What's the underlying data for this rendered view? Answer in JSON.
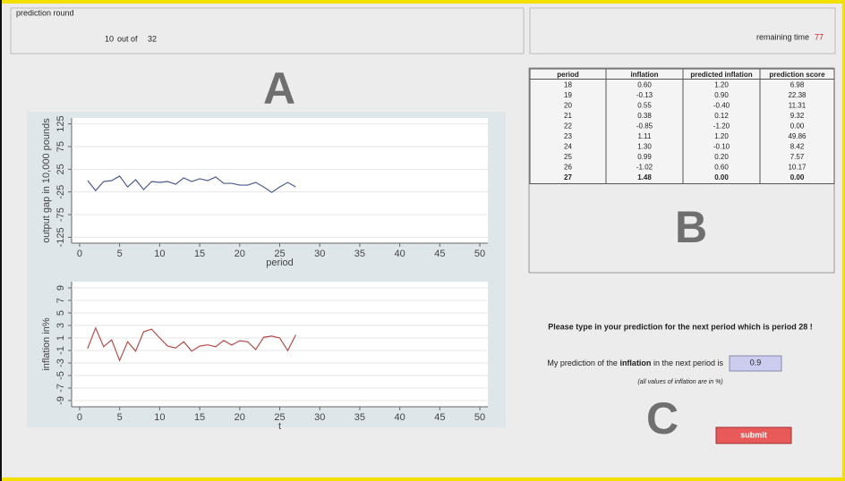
{
  "header": {
    "round_label": "prediction round",
    "round_current": "10",
    "round_of": "out of",
    "round_total": "32",
    "time_label": "remaining time",
    "time_value": "77"
  },
  "section_labels": {
    "a": "A",
    "b": "B",
    "c": "C"
  },
  "chart_data": [
    {
      "type": "line",
      "ylabel": "output gap in 10,000 pounds",
      "xlabel": "period",
      "color": "#4a5a8c",
      "x": [
        1,
        2,
        3,
        4,
        5,
        6,
        7,
        8,
        9,
        10,
        11,
        12,
        13,
        14,
        15,
        16,
        17,
        18,
        19,
        20,
        21,
        22,
        23,
        24,
        25,
        26,
        27
      ],
      "values": [
        0,
        -22,
        -2,
        0,
        10,
        -14,
        2,
        -20,
        -2,
        -4,
        -2,
        -8,
        6,
        -2,
        4,
        0,
        8,
        -6,
        -6,
        -10,
        -10,
        -4,
        -14,
        -26,
        -14,
        -4,
        -14
      ],
      "xlim": [
        -1,
        51
      ],
      "xticks": [
        0,
        5,
        10,
        15,
        20,
        25,
        30,
        35,
        40,
        45,
        50
      ],
      "ylim": [
        -138,
        138
      ],
      "yticks": [
        -125,
        -75,
        -25,
        25,
        75,
        125
      ]
    },
    {
      "type": "line",
      "ylabel": "inflation in%",
      "xlabel": "t",
      "color": "#b84a4a",
      "x": [
        1,
        2,
        3,
        4,
        5,
        6,
        7,
        8,
        9,
        10,
        11,
        12,
        13,
        14,
        15,
        16,
        17,
        18,
        19,
        20,
        21,
        22,
        23,
        24,
        25,
        26,
        27
      ],
      "values": [
        -0.7,
        2.6,
        -0.4,
        0.7,
        -2.6,
        0.4,
        -1.1,
        2,
        2.4,
        1,
        -0.3,
        -0.6,
        0.4,
        -1.1,
        -0.3,
        -0.1,
        -0.4,
        0.6,
        -0.13,
        0.55,
        0.38,
        -0.85,
        1.11,
        1.3,
        0.99,
        -1.02,
        1.48
      ],
      "xlim": [
        -1,
        51
      ],
      "xticks": [
        0,
        5,
        10,
        15,
        20,
        25,
        30,
        35,
        40,
        45,
        50
      ],
      "ylim": [
        -10,
        10
      ],
      "yticks": [
        -9,
        -7,
        -5,
        -3,
        -1,
        1,
        3,
        5,
        7,
        9
      ]
    }
  ],
  "table": {
    "columns": [
      "period",
      "inflation",
      "predicted inflation",
      "prediction score"
    ],
    "rows": [
      [
        "18",
        "0.60",
        "1.20",
        "6.98"
      ],
      [
        "19",
        "-0.13",
        "0.90",
        "22.38"
      ],
      [
        "20",
        "0.55",
        "-0.40",
        "11.31"
      ],
      [
        "21",
        "0.38",
        "0.12",
        "9.32"
      ],
      [
        "22",
        "-0.85",
        "-1.20",
        "0.00"
      ],
      [
        "23",
        "1.11",
        "1.20",
        "49.86"
      ],
      [
        "24",
        "1.30",
        "-0.10",
        "8.42"
      ],
      [
        "25",
        "0.99",
        "0.20",
        "7.57"
      ],
      [
        "26",
        "-1.02",
        "0.60",
        "10.17"
      ],
      [
        "27",
        "1.48",
        "0.00",
        "0.00"
      ]
    ]
  },
  "form": {
    "prompt": "Please type in your prediction for the next period which is period 28 !",
    "label_before": "My prediction of the",
    "label_bold": "inflation",
    "label_after": "in the next period is",
    "input_value": "0.9",
    "note": "(all values of inflation are in %)",
    "submit": "submit"
  }
}
